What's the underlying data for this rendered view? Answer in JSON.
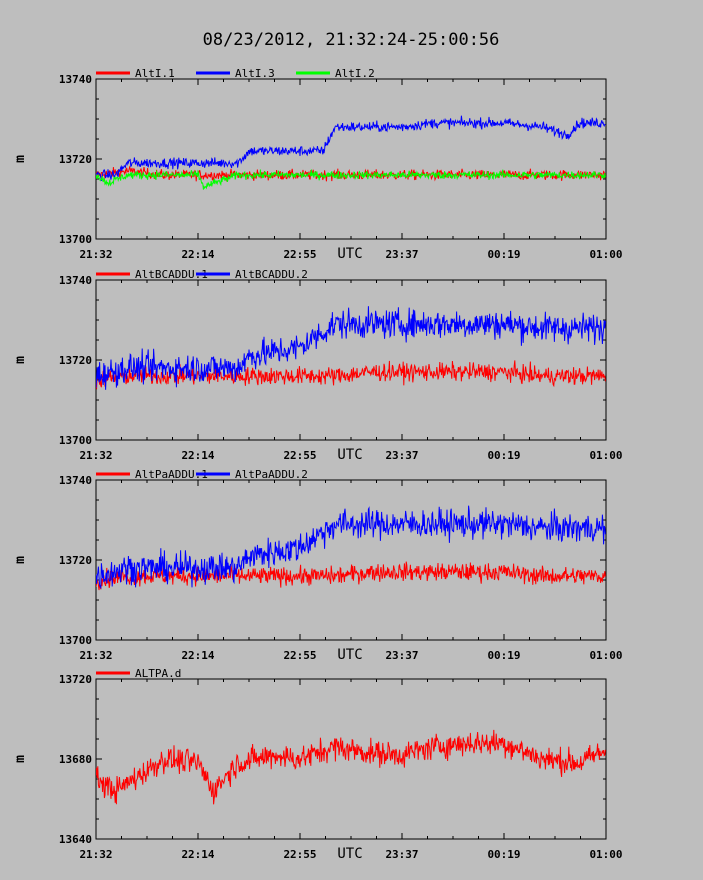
{
  "title": "08/23/2012, 21:32:24-25:00:56",
  "x_axis_label": "UTC",
  "chart_data": [
    {
      "type": "line",
      "ylabel": "m",
      "ylim": [
        13700,
        13740
      ],
      "yticks": [
        "13740",
        "13720",
        "13700"
      ],
      "x_ticks": [
        "21:32",
        "22:14",
        "22:55",
        "23:37",
        "00:19",
        "01:00"
      ],
      "series": [
        {
          "name": "AltI.1",
          "color": "#ff0000",
          "x": [
            "21:32",
            "21:45",
            "22:00",
            "22:14",
            "22:30",
            "22:45",
            "22:55",
            "23:10",
            "23:25",
            "23:37",
            "23:50",
            "00:05",
            "00:19",
            "00:35",
            "00:50",
            "01:00"
          ],
          "values": [
            13716,
            13717,
            13716,
            13716,
            13716,
            13716,
            13716,
            13716,
            13716,
            13716,
            13716,
            13716,
            13716,
            13716,
            13716,
            13716
          ]
        },
        {
          "name": "AltI.3",
          "color": "#0000ff",
          "x": [
            "21:32",
            "21:40",
            "21:45",
            "22:00",
            "22:14",
            "22:30",
            "22:35",
            "22:45",
            "22:55",
            "23:05",
            "23:10",
            "23:25",
            "23:37",
            "23:50",
            "00:05",
            "00:19",
            "00:35",
            "00:45",
            "00:50",
            "01:00"
          ],
          "values": [
            13716,
            13716,
            13719,
            13719,
            13719,
            13719,
            13722,
            13722,
            13722,
            13722,
            13728,
            13728,
            13728,
            13729,
            13729,
            13729,
            13728,
            13726,
            13729,
            13729
          ]
        },
        {
          "name": "AltI.2",
          "color": "#00ff00",
          "x": [
            "21:32",
            "21:37",
            "21:45",
            "22:00",
            "22:14",
            "22:16",
            "22:30",
            "22:45",
            "22:55",
            "23:10",
            "23:25",
            "23:37",
            "23:50",
            "00:05",
            "00:19",
            "00:35",
            "00:50",
            "01:00"
          ],
          "values": [
            13716,
            13714,
            13716,
            13716,
            13716,
            13713,
            13716,
            13716,
            13716,
            13716,
            13716,
            13716,
            13716,
            13716,
            13716,
            13716,
            13716,
            13716
          ]
        }
      ]
    },
    {
      "type": "line",
      "ylabel": "m",
      "ylim": [
        13700,
        13740
      ],
      "yticks": [
        "13740",
        "13720",
        "13700"
      ],
      "x_ticks": [
        "21:32",
        "22:14",
        "22:55",
        "23:37",
        "00:19",
        "01:00"
      ],
      "series": [
        {
          "name": "AltBCADDU.1",
          "color": "#ff0000",
          "x": [
            "21:32",
            "21:45",
            "22:00",
            "22:14",
            "22:30",
            "22:45",
            "22:55",
            "23:10",
            "23:25",
            "23:37",
            "23:50",
            "00:05",
            "00:19",
            "00:35",
            "00:50",
            "01:00"
          ],
          "values": [
            13715,
            13716,
            13716,
            13716,
            13716,
            13716,
            13716,
            13716,
            13717,
            13717,
            13717,
            13717,
            13717,
            13716,
            13716,
            13716
          ]
        },
        {
          "name": "AltBCADDU.2",
          "color": "#0000ff",
          "x": [
            "21:32",
            "21:45",
            "22:00",
            "22:14",
            "22:30",
            "22:35",
            "22:45",
            "22:55",
            "23:10",
            "23:25",
            "23:37",
            "23:50",
            "00:05",
            "00:19",
            "00:35",
            "00:50",
            "01:00"
          ],
          "values": [
            13716,
            13718,
            13718,
            13718,
            13718,
            13721,
            13722,
            13723,
            13729,
            13729,
            13729,
            13729,
            13729,
            13729,
            13728,
            13728,
            13728
          ]
        }
      ]
    },
    {
      "type": "line",
      "ylabel": "m",
      "ylim": [
        13700,
        13740
      ],
      "yticks": [
        "13740",
        "13720",
        "13700"
      ],
      "x_ticks": [
        "21:32",
        "22:14",
        "22:55",
        "23:37",
        "00:19",
        "01:00"
      ],
      "series": [
        {
          "name": "AltPaADDU.1",
          "color": "#ff0000",
          "x": [
            "21:32",
            "21:45",
            "22:00",
            "22:14",
            "22:30",
            "22:45",
            "22:55",
            "23:10",
            "23:25",
            "23:37",
            "23:50",
            "00:05",
            "00:19",
            "00:35",
            "00:50",
            "01:00"
          ],
          "values": [
            13715,
            13716,
            13716,
            13716,
            13716,
            13716,
            13716,
            13716,
            13717,
            13717,
            13717,
            13717,
            13717,
            13716,
            13716,
            13716
          ]
        },
        {
          "name": "AltPaADDU.2",
          "color": "#0000ff",
          "x": [
            "21:32",
            "21:45",
            "22:00",
            "22:14",
            "22:30",
            "22:35",
            "22:45",
            "22:55",
            "23:10",
            "23:25",
            "23:37",
            "23:50",
            "00:05",
            "00:19",
            "00:35",
            "00:50",
            "01:00"
          ],
          "values": [
            13716,
            13718,
            13718,
            13718,
            13718,
            13721,
            13722,
            13723,
            13729,
            13729,
            13729,
            13729,
            13729,
            13729,
            13728,
            13728,
            13728
          ]
        }
      ]
    },
    {
      "type": "line",
      "ylabel": "m",
      "ylim": [
        13640,
        13720
      ],
      "yticks": [
        "13720",
        "13680",
        "13640"
      ],
      "x_ticks": [
        "21:32",
        "22:14",
        "22:55",
        "23:37",
        "00:19",
        "01:00"
      ],
      "series": [
        {
          "name": "ALTPA.d",
          "color": "#ff0000",
          "x": [
            "21:32",
            "21:40",
            "21:50",
            "22:00",
            "22:14",
            "22:20",
            "22:30",
            "22:45",
            "22:55",
            "23:10",
            "23:25",
            "23:37",
            "23:50",
            "00:05",
            "00:19",
            "00:35",
            "00:50",
            "01:00"
          ],
          "values": [
            13670,
            13664,
            13672,
            13680,
            13678,
            13664,
            13678,
            13682,
            13680,
            13686,
            13683,
            13682,
            13686,
            13688,
            13688,
            13680,
            13678,
            13684
          ]
        }
      ]
    }
  ]
}
